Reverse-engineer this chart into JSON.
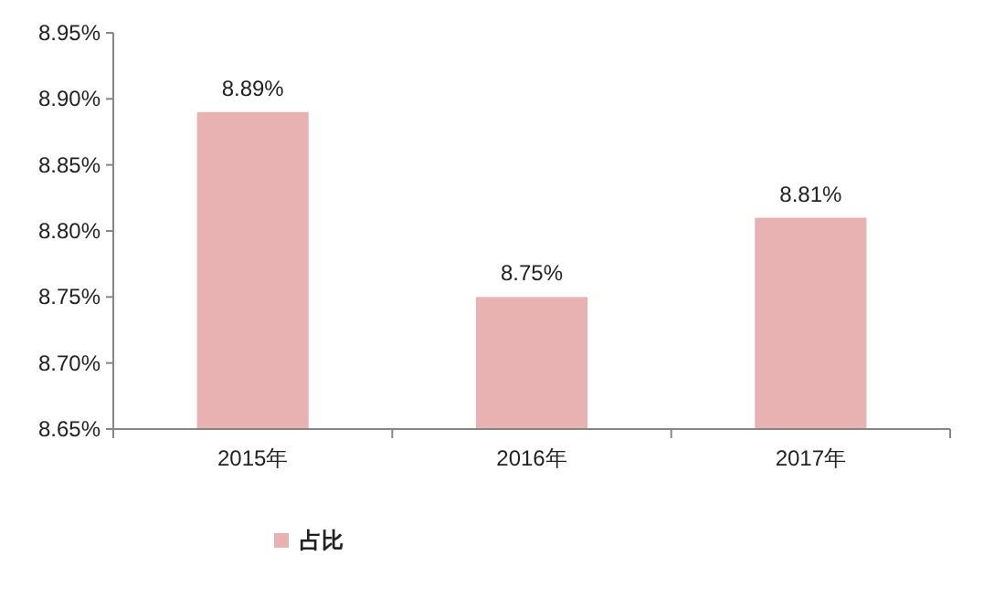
{
  "chart_data": {
    "type": "bar",
    "categories": [
      "2015年",
      "2016年",
      "2017年"
    ],
    "series": [
      {
        "name": "占比",
        "color": "#e8b2b2",
        "values": [
          8.89,
          8.75,
          8.81
        ],
        "value_labels": [
          "8.89%",
          "8.75%",
          "8.81%"
        ]
      }
    ],
    "ylim": [
      8.65,
      8.95
    ],
    "yticks": [
      {
        "value": 8.65,
        "label": "8.65%"
      },
      {
        "value": 8.7,
        "label": "8.70%"
      },
      {
        "value": 8.75,
        "label": "8.75%"
      },
      {
        "value": 8.8,
        "label": "8.80%"
      },
      {
        "value": 8.85,
        "label": "8.85%"
      },
      {
        "value": 8.9,
        "label": "8.90%"
      },
      {
        "value": 8.95,
        "label": "8.95%"
      }
    ],
    "grid": false,
    "legend": "bottom left"
  }
}
